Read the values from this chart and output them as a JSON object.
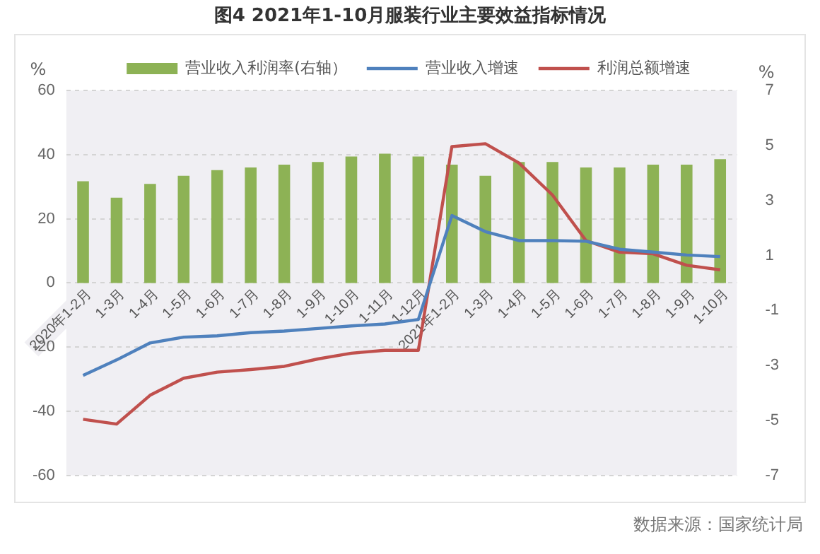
{
  "chart_data": {
    "type": "bar",
    "title": "图4  2021年1-10月服装行业主要效益指标情况",
    "categories": [
      "2020年1-2月",
      "1-3月",
      "1-4月",
      "1-5月",
      "1-6月",
      "1-7月",
      "1-8月",
      "1-9月",
      "1-10月",
      "1-11月",
      "1-12月",
      "2021年1-2月",
      "1-3月",
      "1-4月",
      "1-5月",
      "1-6月",
      "1-7月",
      "1-8月",
      "1-9月",
      "1-10月"
    ],
    "series": [
      {
        "name": "营业收入利润率(右轴）",
        "axis": "y2",
        "color": "#8db255",
        "values": [
          3.7,
          3.1,
          3.6,
          3.9,
          4.1,
          4.2,
          4.3,
          4.4,
          4.6,
          4.7,
          4.6,
          4.3,
          3.9,
          4.4,
          4.4,
          4.2,
          4.2,
          4.3,
          4.3,
          4.5
        ]
      },
      {
        "name": "营业收入增速",
        "type": "line",
        "color": "#4f81bd",
        "values": [
          -28.8,
          -24,
          -18.7,
          -16.9,
          -16.5,
          -15.5,
          -15,
          -14.2,
          -13.4,
          -12.8,
          -11.4,
          21,
          16,
          13.2,
          13.2,
          13,
          10.5,
          9.6,
          8.7,
          8.2
        ]
      },
      {
        "name": "利润总额增速",
        "type": "line",
        "color": "#c0504d",
        "values": [
          -42.5,
          -44,
          -35,
          -29.7,
          -27.8,
          -27,
          -26,
          -23.7,
          -21.9,
          -21,
          -21,
          42.5,
          43.4,
          37.4,
          27.4,
          13.2,
          9.6,
          9.1,
          5.5,
          4.1
        ]
      }
    ],
    "ylabel": "%",
    "y2label": "%",
    "ylim": [
      -60,
      60
    ],
    "yticks": [
      -60,
      -40,
      -20,
      0,
      20,
      40,
      60
    ],
    "y2lim": [
      -7,
      7
    ],
    "y2ticks": [
      -7,
      -5,
      -3,
      -1,
      1,
      3,
      5,
      7
    ],
    "grid": "y",
    "legend": "top",
    "marker": "none",
    "annotations": [
      "数据来源：国家统计局"
    ]
  }
}
